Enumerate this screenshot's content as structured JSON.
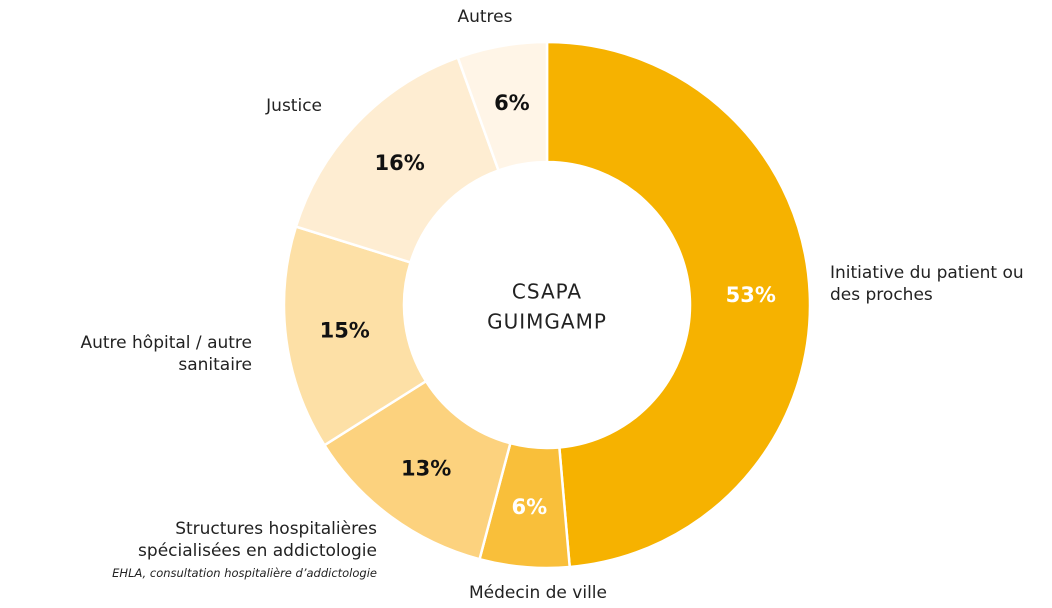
{
  "chart_data": {
    "type": "donut",
    "center_label": [
      "CSAPA",
      "GUIMGAMP"
    ],
    "categories": [
      "Initiative du patient ou des proches",
      "Médecin de ville",
      "Structures hospitalières spécialisées en addictologie",
      "Autre hôpital / autre sanitaire",
      "Justice",
      "Autres"
    ],
    "values": [
      53,
      6,
      13,
      15,
      16,
      6
    ],
    "value_labels": [
      "53%",
      "6%",
      "13%",
      "15%",
      "16%",
      "6%"
    ],
    "colors": [
      "#f6b200",
      "#f9bf3a",
      "#fcd27e",
      "#fde0a6",
      "#feedd2",
      "#fff5e7"
    ],
    "value_label_colors": [
      "#ffffff",
      "#ffffff",
      "#111111",
      "#111111",
      "#111111",
      "#111111"
    ],
    "annotations": [
      {
        "category_index": 2,
        "text": "EHLA, consultation hospitalière d’addictologie"
      }
    ]
  }
}
